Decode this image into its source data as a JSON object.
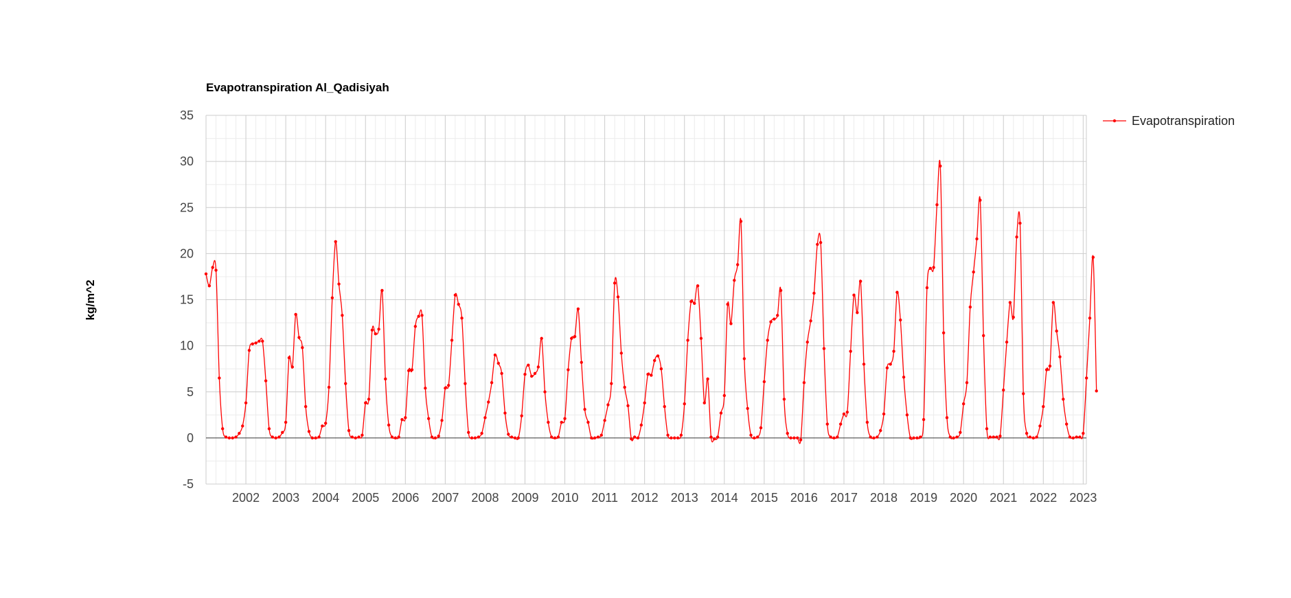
{
  "chart_data": {
    "type": "line",
    "title": "Evapotranspiration Al_Qadisiyah",
    "xlabel": "",
    "ylabel": "kg/m^2",
    "ylim": [
      -5,
      35
    ],
    "y_ticks": [
      -5,
      0,
      5,
      10,
      15,
      20,
      25,
      30,
      35
    ],
    "x_ticks": [
      "2002",
      "2003",
      "2004",
      "2005",
      "2006",
      "2007",
      "2008",
      "2009",
      "2010",
      "2011",
      "2012",
      "2013",
      "2014",
      "2015",
      "2016",
      "2017",
      "2018",
      "2019",
      "2020",
      "2021",
      "2022",
      "2023"
    ],
    "grid": true,
    "legend_position": "right",
    "series": [
      {
        "name": "Evapotranspiration",
        "color": "#ff0000",
        "start": "2001-01",
        "values": [
          17.8,
          16.5,
          18.5,
          18.2,
          6.5,
          1.0,
          0.1,
          0.0,
          0.0,
          0.1,
          0.5,
          1.3,
          3.8,
          9.5,
          10.2,
          10.3,
          10.5,
          10.5,
          6.2,
          1.0,
          0.1,
          0.0,
          0.1,
          0.6,
          1.7,
          8.7,
          7.7,
          13.4,
          10.9,
          9.8,
          3.4,
          0.7,
          0.0,
          0.0,
          0.1,
          1.3,
          1.6,
          5.5,
          15.2,
          21.3,
          16.7,
          13.3,
          5.9,
          0.8,
          0.1,
          0.0,
          0.1,
          0.3,
          3.8,
          4.2,
          11.7,
          11.3,
          11.8,
          16.0,
          6.4,
          1.4,
          0.1,
          0.0,
          0.1,
          2.0,
          2.2,
          7.3,
          7.4,
          12.1,
          13.2,
          13.3,
          5.4,
          2.1,
          0.1,
          0.0,
          0.2,
          1.9,
          5.4,
          5.7,
          10.6,
          15.5,
          14.5,
          13.0,
          5.9,
          0.6,
          0.0,
          0.0,
          0.1,
          0.5,
          2.2,
          3.9,
          6.0,
          9.0,
          8.1,
          7.0,
          2.7,
          0.4,
          0.1,
          0.0,
          0.0,
          2.4,
          6.9,
          7.9,
          6.7,
          7.0,
          7.7,
          10.8,
          5.0,
          1.7,
          0.1,
          0.0,
          0.1,
          1.7,
          2.1,
          7.4,
          10.8,
          11.0,
          14.0,
          8.2,
          3.1,
          1.7,
          0.0,
          0.0,
          0.1,
          0.3,
          1.9,
          3.6,
          5.9,
          16.8,
          15.3,
          9.2,
          5.5,
          3.5,
          -0.1,
          0.1,
          0.0,
          1.4,
          3.8,
          6.9,
          6.8,
          8.4,
          8.9,
          7.5,
          3.4,
          0.3,
          0.0,
          0.0,
          0.0,
          0.3,
          3.7,
          10.6,
          14.8,
          14.6,
          16.5,
          10.8,
          3.8,
          6.4,
          0.1,
          -0.1,
          0.1,
          2.7,
          4.6,
          14.5,
          12.4,
          17.1,
          18.8,
          23.5,
          8.6,
          3.2,
          0.3,
          0.0,
          0.1,
          1.1,
          6.1,
          10.6,
          12.6,
          12.9,
          13.3,
          16.0,
          4.2,
          0.5,
          0.0,
          0.0,
          0.0,
          -0.2,
          6.0,
          10.4,
          12.7,
          15.7,
          21.0,
          21.2,
          9.7,
          1.5,
          0.1,
          0.0,
          0.1,
          1.5,
          2.6,
          2.8,
          9.4,
          15.5,
          13.6,
          17.0,
          8.0,
          1.7,
          0.1,
          0.0,
          0.1,
          0.8,
          2.6,
          7.6,
          8.0,
          9.4,
          15.8,
          12.8,
          6.6,
          2.5,
          0.0,
          0.0,
          0.0,
          0.1,
          2.0,
          16.3,
          18.4,
          18.5,
          25.3,
          29.5,
          11.4,
          2.2,
          0.1,
          0.0,
          0.1,
          0.6,
          3.7,
          6.0,
          14.2,
          18.0,
          21.6,
          25.8,
          11.1,
          1.0,
          0.1,
          0.1,
          0.1,
          0.2,
          5.2,
          10.4,
          14.7,
          13.1,
          21.8,
          23.3,
          4.8,
          0.5,
          0.1,
          0.0,
          0.1,
          1.3,
          3.4,
          7.4,
          7.8,
          14.7,
          11.6,
          8.8,
          4.2,
          1.5,
          0.1,
          0.0,
          0.1,
          0.1,
          0.5,
          6.5,
          13.0,
          19.6,
          5.1
        ]
      }
    ]
  }
}
